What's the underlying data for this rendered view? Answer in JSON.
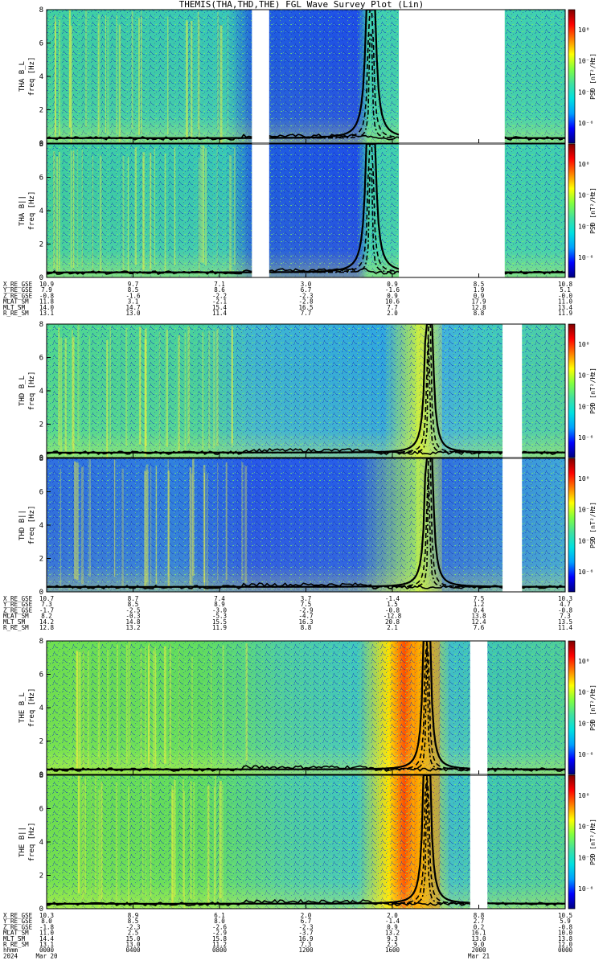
{
  "title": "THEMIS(THA,THD,THE) FGL Wave Survey Plot (Lin)",
  "chart_data": {
    "type": "heatmap",
    "title": "THEMIS(THA,THD,THE) FGL Wave Survey Plot (Lin)",
    "x_label": "hhmm",
    "x_ticks": [
      "0000",
      "0400",
      "0800",
      "1200",
      "1600",
      "2000",
      "0000"
    ],
    "x_dates": [
      "2024",
      "Mar 20",
      "",
      "",
      "",
      "",
      "Mar 21"
    ],
    "y_label_unit": "freq [Hz]",
    "ylim": [
      0,
      8
    ],
    "y_ticks": [
      "0",
      "2",
      "4",
      "6",
      "8"
    ],
    "colorbar_label": "PSD [nT²/Hz]",
    "colorbar_ticks": [
      "10⁰",
      "10⁻²",
      "10⁻⁴",
      "10⁻⁶"
    ],
    "colormap": [
      "#000080",
      "#0000ff",
      "#00a0ff",
      "#00e0e0",
      "#40e0a0",
      "#80ff40",
      "#ffff00",
      "#ff8000",
      "#ff0000",
      "#800000"
    ],
    "groups": [
      {
        "probe": "THA",
        "panels": [
          "THA B_L",
          "THA B||"
        ],
        "gap_hours": [
          [
            9.5,
            10.3
          ],
          [
            16.3,
            21.2
          ]
        ],
        "ephemeris": [
          {
            "label": "X_RE_GSE",
            "values": [
              "10.9",
              "9.7",
              "7.1",
              "3.0",
              "0.9",
              "8.5",
              "10.8"
            ]
          },
          {
            "label": "Y_RE_GSE",
            "values": [
              "7.9",
              "8.5",
              "8.6",
              "6.7",
              "-1.6",
              "1.9",
              "5.1"
            ]
          },
          {
            "label": "Z_RE_GSE",
            "values": [
              "-0.8",
              "-1.6",
              "-2.2",
              "-2.3",
              "0.9",
              "0.9",
              "-0.0"
            ]
          },
          {
            "label": "MLAT_SM",
            "values": [
              "11.8",
              "3.1",
              "-2.1",
              "-2.8",
              "10.6",
              "17.9",
              "11.0"
            ]
          },
          {
            "label": "MLT_SM",
            "values": [
              "14.0",
              "14.7",
              "15.4",
              "16.5",
              "7.7",
              "12.8",
              "13.4"
            ]
          },
          {
            "label": "R_RE_SM",
            "values": [
              "13.1",
              "13.0",
              "11.4",
              "7.7",
              "2.0",
              "8.8",
              "11.9"
            ]
          }
        ]
      },
      {
        "probe": "THD",
        "panels": [
          "THD B_L",
          "THD B||"
        ],
        "gap_hours": [
          [
            21.1,
            22.0
          ]
        ],
        "ephemeris": [
          {
            "label": "X_RE_GSE",
            "values": [
              "10.7",
              "8.7",
              "7.4",
              "3.7",
              "-1.4",
              "7.5",
              "10.3"
            ]
          },
          {
            "label": "Y_RE_GSE",
            "values": [
              "7.3",
              "8.5",
              "8.9",
              "7.5",
              "1.5",
              "1.2",
              "4.7"
            ]
          },
          {
            "label": "Z_RE_GSE",
            "values": [
              "-1.7",
              "-2.5",
              "-3.0",
              "-2.9",
              "-0.8",
              "0.4",
              "-0.8"
            ]
          },
          {
            "label": "MLAT_SM",
            "values": [
              "8.2",
              "-0.3",
              "-5.3",
              "-4.7",
              "-12.8",
              "13.8",
              "7.3"
            ]
          },
          {
            "label": "MLT_SM",
            "values": [
              "14.2",
              "14.8",
              "15.5",
              "16.3",
              "20.8",
              "12.4",
              "13.5"
            ]
          },
          {
            "label": "R_RE_SM",
            "values": [
              "12.8",
              "13.2",
              "11.9",
              "8.8",
              "2.1",
              "7.6",
              "11.4"
            ]
          }
        ]
      },
      {
        "probe": "THE",
        "panels": [
          "THE B_L",
          "THE B||"
        ],
        "gap_hours": [
          [
            19.6,
            20.4
          ]
        ],
        "ephemeris": [
          {
            "label": "X_RE_GSE",
            "values": [
              "10.3",
              "8.9",
              "6.1",
              "2.0",
              "2.0",
              "8.8",
              "10.5"
            ]
          },
          {
            "label": "Y_RE_GSE",
            "values": [
              "8.0",
              "8.5",
              "8.0",
              "6.7",
              "-1.4",
              "2.7",
              "5.9"
            ]
          },
          {
            "label": "Z_RE_GSE",
            "values": [
              "-1.8",
              "-2.3",
              "-2.6",
              "-2.3",
              "0.9",
              "0.2",
              "-0.8"
            ]
          },
          {
            "label": "MLAT_SM",
            "values": [
              "11.0",
              "2.5",
              "-2.9",
              "-3.7",
              "13.2",
              "16.1",
              "10.0"
            ]
          },
          {
            "label": "MLT_SM",
            "values": [
              "14.4",
              "15.0",
              "15.8",
              "16.9",
              "9.3",
              "13.0",
              "13.8"
            ]
          },
          {
            "label": "R_RE_SM",
            "values": [
              "13.1",
              "13.0",
              "11.2",
              "7.3",
              "2.5",
              "9.0",
              "12.0"
            ]
          }
        ]
      }
    ]
  }
}
